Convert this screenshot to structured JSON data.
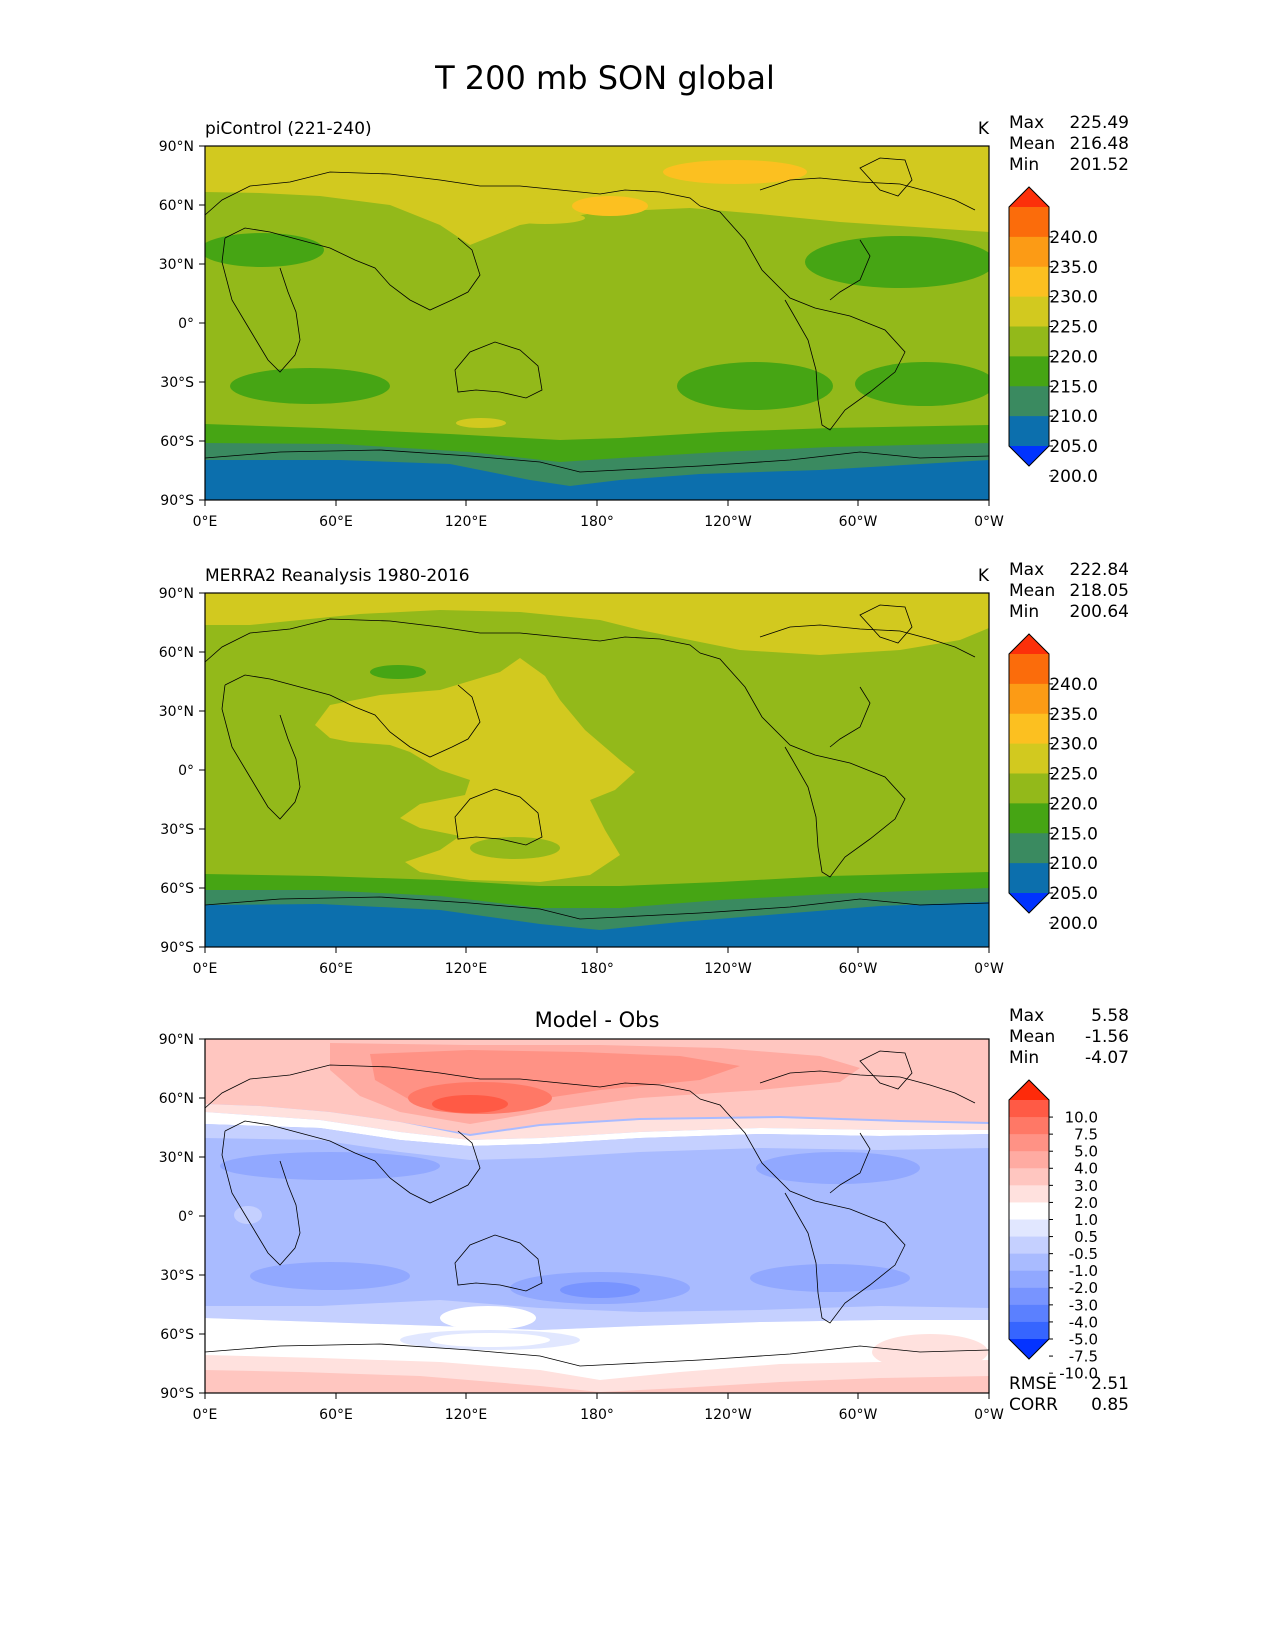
{
  "figure_title": "T 200 mb SON global",
  "x_ticks": [
    "0°E",
    "60°E",
    "120°E",
    "180°",
    "120°W",
    "60°W",
    "0°W"
  ],
  "y_ticks": [
    "90°N",
    "60°N",
    "30°N",
    "0°",
    "30°S",
    "60°S",
    "90°S"
  ],
  "colors": {
    "temp_levels": [
      "#0033ff",
      "#0c6fad",
      "#3a8a60",
      "#46a514",
      "#93b91a",
      "#d2c91f",
      "#fcc020",
      "#fc9b15",
      "#fb6c0b",
      "#fc300a"
    ],
    "diff_levels": [
      "#0433ff",
      "#3665ff",
      "#5b80ff",
      "#7894ff",
      "#91a8ff",
      "#a9bbff",
      "#c5d0ff",
      "#e1e7ff",
      "#ffffff",
      "#ffe1de",
      "#ffc6c0",
      "#ffaba2",
      "#ff9285",
      "#ff7866",
      "#ff5a45",
      "#fe2a0a"
    ],
    "coast": "#000000"
  },
  "panels": [
    {
      "left_title": "piControl (221-240)",
      "center_title": "",
      "units": "K",
      "stats": {
        "max_label": "Max",
        "max": "225.49",
        "mean_label": "Mean",
        "mean": "216.48",
        "min_label": "Min",
        "min": "201.52"
      },
      "colorbar_labels": [
        "240.0",
        "235.0",
        "230.0",
        "225.0",
        "220.0",
        "215.0",
        "210.0",
        "205.0",
        "200.0"
      ],
      "palette": "temp"
    },
    {
      "left_title": "MERRA2 Reanalysis 1980-2016",
      "center_title": "",
      "units": "K",
      "stats": {
        "max_label": "Max",
        "max": "222.84",
        "mean_label": "Mean",
        "mean": "218.05",
        "min_label": "Min",
        "min": "200.64"
      },
      "colorbar_labels": [
        "240.0",
        "235.0",
        "230.0",
        "225.0",
        "220.0",
        "215.0",
        "210.0",
        "205.0",
        "200.0"
      ],
      "palette": "temp"
    },
    {
      "left_title": "",
      "center_title": "Model - Obs",
      "units": "",
      "stats": {
        "max_label": "Max",
        "max": "5.58",
        "mean_label": "Mean",
        "mean": "-1.56",
        "min_label": "Min",
        "min": "-4.07"
      },
      "colorbar_labels": [
        "10.0",
        "7.5",
        "5.0",
        "4.0",
        "3.0",
        "2.0",
        "1.0",
        "0.5",
        "-0.5",
        "-1.0",
        "-2.0",
        "-3.0",
        "-4.0",
        "-5.0",
        "-7.5",
        "-10.0"
      ],
      "palette": "diff",
      "rmse_label": "RMSE",
      "rmse": "2.51",
      "corr_label": "CORR",
      "corr": "0.85"
    }
  ]
}
